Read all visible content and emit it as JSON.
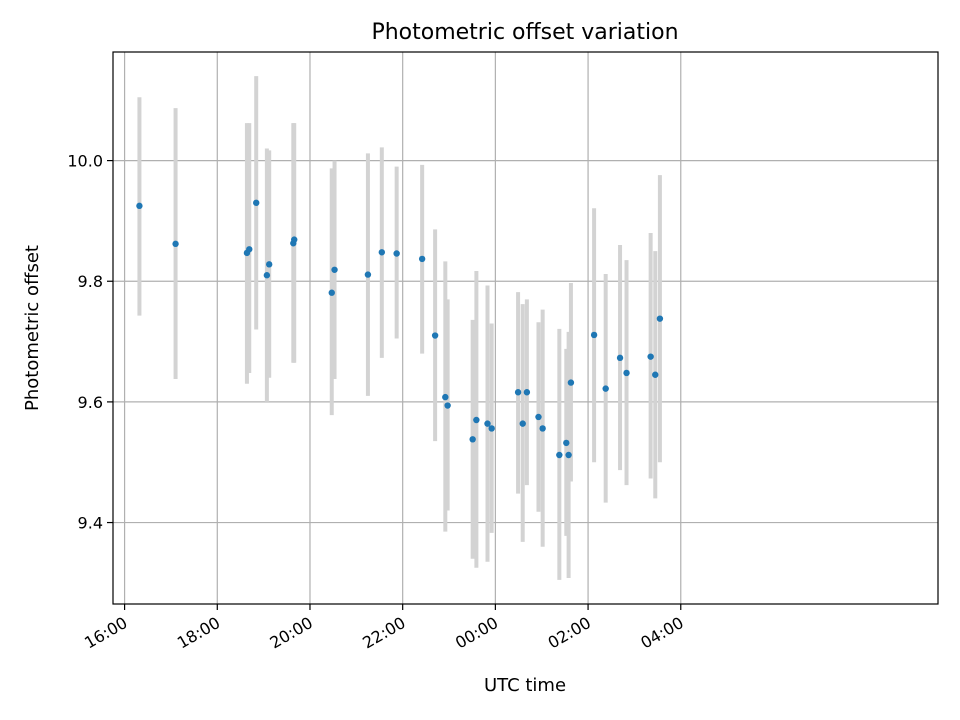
{
  "chart_data": {
    "type": "scatter",
    "title": "Photometric offset variation",
    "xlabel": "UTC time",
    "ylabel": "Photometric offset",
    "x_unit": "hours since 16:00 UTC",
    "xlim": [
      -0.25,
      17.55
    ],
    "ylim": [
      9.265,
      10.18
    ],
    "x_ticks": [
      {
        "value": 0,
        "label": "16:00"
      },
      {
        "value": 2,
        "label": "18:00"
      },
      {
        "value": 4,
        "label": "20:00"
      },
      {
        "value": 6,
        "label": "22:00"
      },
      {
        "value": 8,
        "label": "00:00"
      },
      {
        "value": 10,
        "label": "02:00"
      },
      {
        "value": 12,
        "label": "04:00"
      }
    ],
    "y_ticks": [
      {
        "value": 9.4,
        "label": "9.4"
      },
      {
        "value": 9.6,
        "label": "9.6"
      },
      {
        "value": 9.8,
        "label": "9.8"
      },
      {
        "value": 10.0,
        "label": "10.0"
      }
    ],
    "grid": true,
    "point_color": "#1f77b4",
    "errorbar_color": "#d3d3d3",
    "points": [
      {
        "time": "16:19",
        "x": 0.32,
        "y": 9.925,
        "low": 9.743,
        "high": 10.105
      },
      {
        "time": "17:06",
        "x": 1.1,
        "y": 9.862,
        "low": 9.638,
        "high": 10.087
      },
      {
        "time": "18:38",
        "x": 2.64,
        "y": 9.847,
        "low": 9.63,
        "high": 10.062
      },
      {
        "time": "18:41",
        "x": 2.69,
        "y": 9.853,
        "low": 9.648,
        "high": 10.062
      },
      {
        "time": "18:50",
        "x": 2.84,
        "y": 9.93,
        "low": 9.72,
        "high": 10.14
      },
      {
        "time": "19:04",
        "x": 3.07,
        "y": 9.81,
        "low": 9.6,
        "high": 10.02
      },
      {
        "time": "19:07",
        "x": 3.12,
        "y": 9.828,
        "low": 9.64,
        "high": 10.017
      },
      {
        "time": "19:38",
        "x": 3.64,
        "y": 9.863,
        "low": 9.665,
        "high": 10.062
      },
      {
        "time": "19:39",
        "x": 3.66,
        "y": 9.869,
        "low": 9.665,
        "high": 10.062
      },
      {
        "time": "20:28",
        "x": 4.47,
        "y": 9.781,
        "low": 9.578,
        "high": 9.987
      },
      {
        "time": "20:32",
        "x": 4.53,
        "y": 9.819,
        "low": 9.638,
        "high": 10.0
      },
      {
        "time": "21:15",
        "x": 5.25,
        "y": 9.811,
        "low": 9.61,
        "high": 10.012
      },
      {
        "time": "21:33",
        "x": 5.55,
        "y": 9.848,
        "low": 9.673,
        "high": 10.022
      },
      {
        "time": "21:52",
        "x": 5.87,
        "y": 9.846,
        "low": 9.705,
        "high": 9.99
      },
      {
        "time": "22:25",
        "x": 6.42,
        "y": 9.837,
        "low": 9.68,
        "high": 9.993
      },
      {
        "time": "22:42",
        "x": 6.7,
        "y": 9.71,
        "low": 9.535,
        "high": 9.886
      },
      {
        "time": "22:55",
        "x": 6.92,
        "y": 9.608,
        "low": 9.385,
        "high": 9.833
      },
      {
        "time": "22:58",
        "x": 6.97,
        "y": 9.594,
        "low": 9.42,
        "high": 9.77
      },
      {
        "time": "23:31",
        "x": 7.51,
        "y": 9.538,
        "low": 9.34,
        "high": 9.736
      },
      {
        "time": "23:35",
        "x": 7.59,
        "y": 9.57,
        "low": 9.325,
        "high": 9.817
      },
      {
        "time": "23:50",
        "x": 7.83,
        "y": 9.564,
        "low": 9.335,
        "high": 9.793
      },
      {
        "time": "23:55",
        "x": 7.92,
        "y": 9.556,
        "low": 9.383,
        "high": 9.73
      },
      {
        "time": "00:30",
        "x": 8.49,
        "y": 9.616,
        "low": 9.448,
        "high": 9.782
      },
      {
        "time": "00:35",
        "x": 8.59,
        "y": 9.564,
        "low": 9.368,
        "high": 9.762
      },
      {
        "time": "00:41",
        "x": 8.68,
        "y": 9.616,
        "low": 9.462,
        "high": 9.77
      },
      {
        "time": "00:56",
        "x": 8.93,
        "y": 9.575,
        "low": 9.418,
        "high": 9.732
      },
      {
        "time": "01:01",
        "x": 9.02,
        "y": 9.556,
        "low": 9.36,
        "high": 9.753
      },
      {
        "time": "01:23",
        "x": 9.38,
        "y": 9.512,
        "low": 9.305,
        "high": 9.721
      },
      {
        "time": "01:32",
        "x": 9.53,
        "y": 9.532,
        "low": 9.378,
        "high": 9.688
      },
      {
        "time": "01:35",
        "x": 9.58,
        "y": 9.512,
        "low": 9.308,
        "high": 9.716
      },
      {
        "time": "01:38",
        "x": 9.63,
        "y": 9.632,
        "low": 9.468,
        "high": 9.797
      },
      {
        "time": "02:08",
        "x": 10.13,
        "y": 9.711,
        "low": 9.5,
        "high": 9.921
      },
      {
        "time": "02:23",
        "x": 10.38,
        "y": 9.622,
        "low": 9.433,
        "high": 9.812
      },
      {
        "time": "02:41",
        "x": 10.69,
        "y": 9.673,
        "low": 9.487,
        "high": 9.86
      },
      {
        "time": "02:50",
        "x": 10.83,
        "y": 9.648,
        "low": 9.462,
        "high": 9.835
      },
      {
        "time": "03:21",
        "x": 11.35,
        "y": 9.675,
        "low": 9.473,
        "high": 9.88
      },
      {
        "time": "03:27",
        "x": 11.45,
        "y": 9.645,
        "low": 9.44,
        "high": 9.85
      },
      {
        "time": "03:33",
        "x": 11.55,
        "y": 9.738,
        "low": 9.5,
        "high": 9.976
      }
    ]
  }
}
